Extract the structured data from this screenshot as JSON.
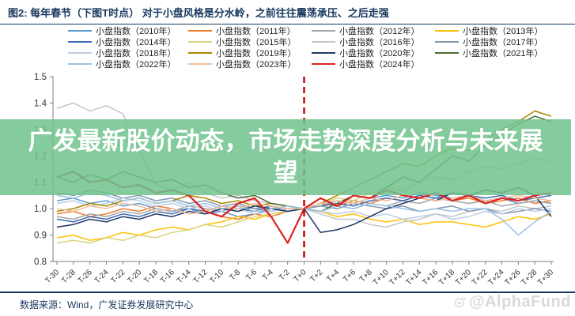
{
  "header": {
    "title": "图2: 每年春节（下图T时点） 对于小盘风格是分水岭，之前往往震荡承压、之后走强"
  },
  "overlay": {
    "text": "广发最新股价动态，市场走势深度分析与未来展望"
  },
  "footer": {
    "source": "数据来源：Wind，广发证券发展研究中心",
    "watermark": "@AlphaFund"
  },
  "chart_data": {
    "type": "line",
    "x_labels": [
      "T-30",
      "T-28",
      "T-26",
      "T-24",
      "T-22",
      "T-20",
      "T-18",
      "T-16",
      "T-14",
      "T-12",
      "T-10",
      "T-8",
      "T-6",
      "T-4",
      "T-2",
      "T+0",
      "T+2",
      "T+4",
      "T+6",
      "T+8",
      "T+10",
      "T+12",
      "T+14",
      "T+16",
      "T+18",
      "T+20",
      "T+22",
      "T+24",
      "T+26",
      "T+28",
      "T+30"
    ],
    "ylim": [
      0.8,
      1.5
    ],
    "y_ticks": [
      0.8,
      0.9,
      1.0,
      1.1,
      1.2,
      1.3,
      1.4,
      1.5
    ],
    "grid": false,
    "legend_position": "top",
    "normalized_at": "T+0",
    "marker_line": {
      "x": "T+0",
      "color": "#C00000",
      "style": "dashed"
    },
    "series": [
      {
        "name": "小盘指数（2010年）",
        "color": "#5B9BD5",
        "values": [
          1.03,
          1.04,
          1.02,
          1.03,
          1.01,
          1.02,
          1.0,
          0.99,
          1.0,
          0.98,
          0.99,
          0.97,
          0.98,
          1.0,
          0.99,
          1.0,
          1.01,
          1.03,
          1.02,
          1.04,
          1.05,
          1.04,
          1.06,
          1.05,
          1.04,
          1.05,
          1.03,
          1.04,
          1.02,
          1.03,
          1.02
        ]
      },
      {
        "name": "小盘指数（2011年）",
        "color": "#ED7D31",
        "values": [
          0.98,
          0.99,
          0.97,
          0.98,
          1.0,
          0.99,
          1.01,
          1.0,
          0.98,
          0.99,
          0.97,
          0.96,
          0.98,
          0.97,
          0.99,
          1.0,
          1.02,
          1.01,
          1.03,
          1.02,
          1.04,
          1.03,
          1.05,
          1.04,
          1.03,
          1.04,
          1.02,
          1.03,
          1.04,
          1.02,
          1.03
        ]
      },
      {
        "name": "小盘指数（2012年）",
        "color": "#A5A5A5",
        "values": [
          0.97,
          0.96,
          0.98,
          0.97,
          0.99,
          0.98,
          1.0,
          0.99,
          1.01,
          1.0,
          0.99,
          1.01,
          1.0,
          0.99,
          1.0,
          1.0,
          0.99,
          1.01,
          1.0,
          1.02,
          1.01,
          1.03,
          1.02,
          1.04,
          1.03,
          1.02,
          1.03,
          1.01,
          1.02,
          1.03,
          1.02
        ]
      },
      {
        "name": "小盘指数（2013年）",
        "color": "#FFC000",
        "values": [
          0.89,
          0.9,
          0.88,
          0.89,
          0.91,
          0.9,
          0.92,
          0.93,
          0.92,
          0.94,
          0.95,
          0.97,
          0.96,
          0.98,
          0.99,
          1.0,
          0.99,
          0.97,
          0.98,
          0.96,
          0.95,
          0.96,
          0.94,
          0.95,
          0.95,
          0.94,
          0.93,
          0.95,
          0.97,
          0.96,
          0.98
        ]
      },
      {
        "name": "小盘指数（2014年）",
        "color": "#3D6CB4",
        "values": [
          0.96,
          0.95,
          0.97,
          0.96,
          0.98,
          0.97,
          0.99,
          0.98,
          1.0,
          0.99,
          1.01,
          1.0,
          0.99,
          1.01,
          1.0,
          1.0,
          1.01,
          1.02,
          1.01,
          1.03,
          1.04,
          1.03,
          1.05,
          1.04,
          1.06,
          1.05,
          1.04,
          1.05,
          1.03,
          1.04,
          1.05
        ]
      },
      {
        "name": "小盘指数（2015年）",
        "color": "#D9D27F",
        "values": [
          0.87,
          0.88,
          0.87,
          0.89,
          0.88,
          0.9,
          0.89,
          0.91,
          0.92,
          0.94,
          0.93,
          0.95,
          0.97,
          0.98,
          0.99,
          1.0,
          1.02,
          1.04,
          1.03,
          1.06,
          1.08,
          1.07,
          1.1,
          1.12,
          1.11,
          1.14,
          1.16,
          1.15,
          1.17,
          1.19,
          1.18
        ]
      },
      {
        "name": "小盘指数（2016年）",
        "color": "#C6C6C6",
        "values": [
          1.38,
          1.4,
          1.37,
          1.39,
          1.36,
          1.22,
          1.09,
          1.07,
          1.1,
          1.06,
          1.04,
          1.05,
          1.03,
          1.02,
          1.01,
          1.0,
          0.98,
          0.96,
          0.96,
          0.94,
          0.93,
          0.95,
          0.96,
          0.98,
          0.97,
          0.99,
          1.0,
          0.99,
          1.01,
          1.0,
          1.01
        ]
      },
      {
        "name": "小盘指数（2017年）",
        "color": "#8497B0",
        "values": [
          1.06,
          1.05,
          1.07,
          1.06,
          1.04,
          1.05,
          1.03,
          1.04,
          1.02,
          1.03,
          1.01,
          1.02,
          1.0,
          1.01,
          0.99,
          1.0,
          1.01,
          1.0,
          1.02,
          1.01,
          1.0,
          1.01,
          0.99,
          1.0,
          1.01,
          0.99,
          1.0,
          0.98,
          0.99,
          1.0,
          0.99
        ]
      },
      {
        "name": "小盘指数（2018年）",
        "color": "#BDCDE4",
        "values": [
          1.02,
          1.03,
          1.01,
          1.02,
          1.04,
          1.03,
          1.01,
          1.02,
          1.0,
          1.01,
          0.99,
          1.0,
          0.98,
          0.99,
          1.0,
          1.0,
          0.99,
          0.98,
          0.99,
          0.97,
          0.98,
          0.96,
          0.97,
          0.98,
          0.96,
          0.97,
          0.99,
          0.98,
          1.0,
          0.99,
          1.0
        ]
      },
      {
        "name": "小盘指数（2019年）",
        "color": "#A98600",
        "values": [
          0.99,
          1.0,
          1.02,
          1.01,
          1.03,
          1.04,
          1.02,
          1.03,
          1.05,
          1.04,
          1.02,
          1.03,
          1.01,
          1.02,
          1.01,
          1.0,
          1.02,
          1.05,
          1.08,
          1.11,
          1.14,
          1.17,
          1.16,
          1.2,
          1.23,
          1.22,
          1.26,
          1.3,
          1.33,
          1.37,
          1.35
        ]
      },
      {
        "name": "小盘指数（2020年）",
        "color": "#1F3864",
        "values": [
          0.93,
          0.94,
          0.96,
          0.95,
          0.97,
          0.96,
          0.98,
          0.97,
          0.99,
          0.98,
          1.0,
          0.99,
          1.01,
          1.0,
          0.99,
          1.0,
          0.91,
          0.92,
          0.94,
          0.97,
          1.0,
          1.02,
          1.04,
          1.03,
          1.06,
          1.05,
          1.07,
          1.06,
          1.08,
          1.05,
          0.97
        ]
      },
      {
        "name": "小盘指数（2021年）",
        "color": "#4A6B35",
        "values": [
          1.12,
          1.1,
          1.13,
          1.11,
          1.14,
          1.12,
          1.1,
          1.11,
          1.08,
          1.09,
          1.06,
          1.04,
          1.05,
          1.02,
          1.01,
          1.0,
          0.99,
          1.02,
          1.05,
          1.04,
          1.08,
          1.12,
          1.1,
          1.15,
          1.2,
          1.18,
          1.24,
          1.28,
          1.32,
          1.35,
          1.33
        ]
      },
      {
        "name": "小盘指数（2022年）",
        "color": "#9CC2E5",
        "values": [
          1.05,
          1.04,
          1.06,
          1.05,
          1.03,
          1.04,
          1.02,
          1.03,
          1.01,
          1.02,
          1.0,
          1.01,
          0.99,
          1.0,
          1.01,
          1.0,
          0.99,
          1.01,
          1.0,
          1.02,
          1.01,
          1.0,
          0.99,
          1.0,
          0.99,
          1.0,
          1.0,
          0.96,
          0.9,
          0.95,
          0.99
        ]
      },
      {
        "name": "小盘指数（2023年）",
        "color": "#F1BE99",
        "values": [
          1.0,
          0.99,
          1.01,
          1.0,
          1.02,
          1.01,
          0.99,
          1.0,
          0.98,
          0.99,
          1.01,
          1.0,
          1.02,
          1.01,
          1.0,
          1.0,
          1.02,
          1.03,
          1.02,
          1.04,
          1.03,
          1.05,
          1.04,
          1.03,
          1.04,
          1.05,
          1.03,
          1.04,
          1.05,
          1.04,
          1.03
        ]
      },
      {
        "name": "小盘指数（2024年）",
        "color": "#DF2020",
        "values": [
          1.12,
          1.14,
          1.1,
          1.11,
          1.08,
          1.09,
          1.06,
          1.07,
          1.05,
          0.99,
          0.97,
          1.02,
          1.04,
          0.97,
          0.87,
          1.0,
          1.04,
          1.01,
          1.05,
          1.04,
          1.07,
          1.05,
          1.04,
          1.06,
          1.03,
          1.05,
          1.02,
          1.04,
          1.03,
          1.05,
          1.06
        ]
      }
    ]
  }
}
